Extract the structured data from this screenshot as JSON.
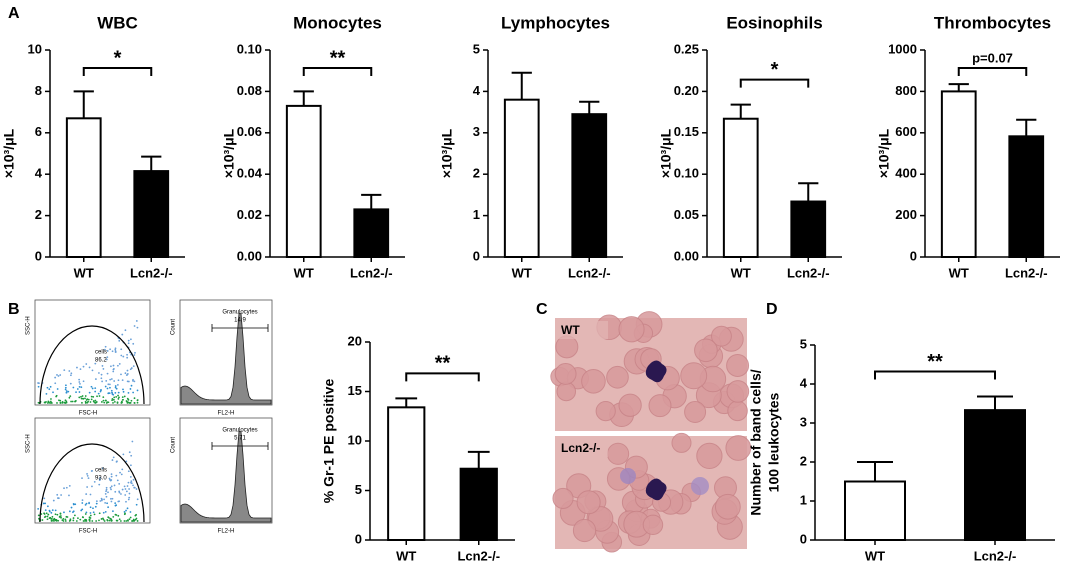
{
  "panels": [
    "A",
    "B",
    "C",
    "D"
  ],
  "chart_data": [
    {
      "type": "bar",
      "title": "WBC",
      "ylabel": [
        "×10³/μL"
      ],
      "categories": [
        "WT",
        "Lcn2-/-"
      ],
      "values": [
        6.7,
        4.15
      ],
      "errors": [
        1.3,
        0.7
      ],
      "colors": [
        "#ffffff",
        "#000000"
      ],
      "ylim": [
        0,
        10
      ],
      "yticks": [
        0,
        2,
        4,
        6,
        8,
        10
      ],
      "annotation": "*"
    },
    {
      "type": "bar",
      "title": "Monocytes",
      "ylabel": [
        "×10³/μL"
      ],
      "categories": [
        "WT",
        "Lcn2-/-"
      ],
      "values": [
        0.073,
        0.023
      ],
      "errors": [
        0.007,
        0.007
      ],
      "colors": [
        "#ffffff",
        "#000000"
      ],
      "ylim": [
        0,
        0.1
      ],
      "yticks": [
        {
          "value": 0,
          "label": "0.00"
        },
        {
          "value": 0.02,
          "label": "0.02"
        },
        {
          "value": 0.04,
          "label": "0.04"
        },
        {
          "value": 0.06,
          "label": "0.06"
        },
        {
          "value": 0.08,
          "label": "0.08"
        },
        {
          "value": 0.1,
          "label": "0.10"
        }
      ],
      "annotation": "**"
    },
    {
      "type": "bar",
      "title": "Lymphocytes",
      "ylabel": [
        "×10³/μL"
      ],
      "categories": [
        "WT",
        "Lcn2-/-"
      ],
      "values": [
        3.8,
        3.45
      ],
      "errors": [
        0.65,
        0.3
      ],
      "colors": [
        "#ffffff",
        "#000000"
      ],
      "ylim": [
        0,
        5
      ],
      "yticks": [
        0,
        1,
        2,
        3,
        4,
        5
      ]
    },
    {
      "type": "bar",
      "title": "Eosinophils",
      "ylabel": [
        "×10³/μL"
      ],
      "categories": [
        "WT",
        "Lcn2-/-"
      ],
      "values": [
        0.167,
        0.067
      ],
      "errors": [
        0.017,
        0.022
      ],
      "colors": [
        "#ffffff",
        "#000000"
      ],
      "ylim": [
        0,
        0.25
      ],
      "yticks": [
        {
          "value": 0,
          "label": "0.00"
        },
        {
          "value": 0.05,
          "label": "0.05"
        },
        {
          "value": 0.1,
          "label": "0.10"
        },
        {
          "value": 0.15,
          "label": "0.15"
        },
        {
          "value": 0.2,
          "label": "0.20"
        },
        {
          "value": 0.25,
          "label": "0.25"
        }
      ],
      "annotation": "*"
    },
    {
      "type": "bar",
      "title": "Thrombocytes",
      "ylabel": [
        "×10³/μL"
      ],
      "categories": [
        "WT",
        "Lcn2-/-"
      ],
      "values": [
        800,
        583
      ],
      "errors": [
        35,
        80
      ],
      "colors": [
        "#ffffff",
        "#000000"
      ],
      "ylim": [
        0,
        1000
      ],
      "yticks": [
        0,
        200,
        400,
        600,
        800,
        1000
      ],
      "annotation": "p=0.07"
    },
    {
      "type": "bar",
      "ylabel": [
        "% Gr-1 PE positive"
      ],
      "categories": [
        "WT",
        "Lcn2-/-"
      ],
      "values": [
        13.4,
        7.2
      ],
      "errors": [
        0.9,
        1.7
      ],
      "colors": [
        "#ffffff",
        "#000000"
      ],
      "ylim": [
        0,
        20
      ],
      "yticks": [
        0,
        5,
        10,
        15,
        20
      ],
      "annotation": "**"
    },
    {
      "type": "bar",
      "ylabel": [
        "Number of band cells/",
        "100 leukocytes"
      ],
      "categories": [
        "WT",
        "Lcn2-/-"
      ],
      "values": [
        1.5,
        3.33
      ],
      "errors": [
        0.5,
        0.35
      ],
      "colors": [
        "#ffffff",
        "#000000"
      ],
      "ylim": [
        0,
        5
      ],
      "yticks": [
        0,
        1,
        2,
        3,
        4,
        5
      ],
      "annotation": "**"
    }
  ],
  "flow": {
    "scatter_x": "FSC-H",
    "scatter_y": "SSC-H",
    "hist_x": "FL2-H",
    "hist_y": "Count",
    "rows": [
      {
        "gate": "cells",
        "gate_value": "86.2",
        "hist_gate": "Granulocytes",
        "hist_value": "14.9"
      },
      {
        "gate": "cells",
        "gate_value": "93.0",
        "hist_gate": "Granulocytes",
        "hist_value": "5.71"
      }
    ]
  },
  "micrograph": {
    "labels": [
      "WT",
      "Lcn2-/-"
    ]
  }
}
